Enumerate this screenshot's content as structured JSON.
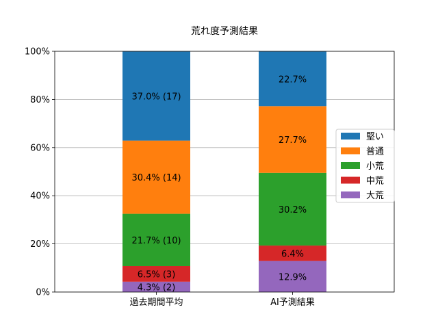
{
  "chart_data": {
    "type": "bar",
    "stacked": true,
    "title": "荒れ度予測結果",
    "xlabel": "",
    "ylabel": "",
    "ylim": [
      0,
      100
    ],
    "yticks": [
      "0%",
      "20%",
      "40%",
      "60%",
      "80%",
      "100%"
    ],
    "grid": "horizontal",
    "legend_position": "right",
    "categories": [
      "過去期間平均",
      "AI予測結果"
    ],
    "series": [
      {
        "name": "大荒",
        "color": "#9467bd",
        "values": [
          4.3,
          12.9
        ],
        "labels": [
          "4.3% (2)",
          "12.9%"
        ]
      },
      {
        "name": "中荒",
        "color": "#d62728",
        "values": [
          6.5,
          6.4
        ],
        "labels": [
          "6.5% (3)",
          "6.4%"
        ]
      },
      {
        "name": "小荒",
        "color": "#2ca02c",
        "values": [
          21.7,
          30.2
        ],
        "labels": [
          "21.7% (10)",
          "30.2%"
        ]
      },
      {
        "name": "普通",
        "color": "#ff7f0e",
        "values": [
          30.4,
          27.7
        ],
        "labels": [
          "30.4% (14)",
          "27.7%"
        ]
      },
      {
        "name": "堅い",
        "color": "#1f77b4",
        "values": [
          37.0,
          22.7
        ],
        "labels": [
          "37.0% (17)",
          "22.7%"
        ]
      }
    ],
    "legend_order": [
      "堅い",
      "普通",
      "小荒",
      "中荒",
      "大荒"
    ]
  }
}
